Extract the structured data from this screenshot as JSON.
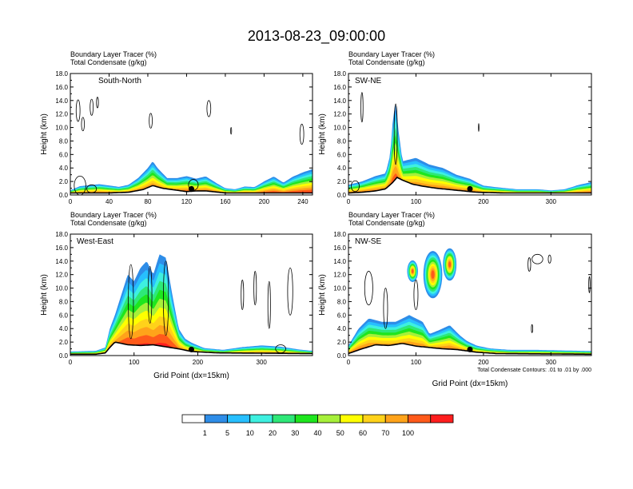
{
  "title": "2013-08-23_09:00:00",
  "field_label": "Boundary Layer Tracer   (%)",
  "contour_label": "Total Condensate   (g/kg)",
  "colors": {
    "contour": "#000000",
    "levels": [
      "#ffffff",
      "#2e8de8",
      "#27bfff",
      "#3ef0e0",
      "#2ee878",
      "#1ee61e",
      "#a6f03a",
      "#ffff00",
      "#ffd21a",
      "#ffa31a",
      "#ff5a1a",
      "#ff1e1e"
    ]
  },
  "chart_data": [
    {
      "type": "heatmap",
      "panel_label": "South-North",
      "ylabel": "Height (km)",
      "xlabel": "",
      "ylim": [
        0,
        18
      ],
      "yticks": [
        "0.0",
        "2.0",
        "4.0",
        "6.0",
        "8.0",
        "10.0",
        "12.0",
        "14.0",
        "16.0",
        "18.0"
      ],
      "xlim": [
        0,
        250
      ],
      "xticks": [
        0,
        40,
        80,
        120,
        160,
        200,
        240
      ],
      "marker_x": 125,
      "terrain": [
        [
          0,
          0.3
        ],
        [
          20,
          0.3
        ],
        [
          40,
          0.3
        ],
        [
          60,
          0.4
        ],
        [
          75,
          0.8
        ],
        [
          85,
          1.4
        ],
        [
          95,
          1.0
        ],
        [
          110,
          0.7
        ],
        [
          120,
          0.5
        ],
        [
          130,
          0.6
        ],
        [
          140,
          0.6
        ],
        [
          160,
          0.3
        ],
        [
          250,
          0.3
        ]
      ],
      "tracer": [
        [
          0,
          0.7,
          1.0
        ],
        [
          10,
          1.3,
          1.0
        ],
        [
          30,
          1.6,
          1.0
        ],
        [
          50,
          1.2,
          1.0
        ],
        [
          60,
          1.5,
          1.0
        ],
        [
          70,
          2.5,
          1.0
        ],
        [
          80,
          4.0,
          1.0
        ],
        [
          85,
          5.0,
          1.0
        ],
        [
          90,
          4.0,
          1.0
        ],
        [
          100,
          2.5,
          1.0
        ],
        [
          110,
          2.5,
          1.0
        ],
        [
          120,
          2.8,
          1.0
        ],
        [
          130,
          2.4,
          1.0
        ],
        [
          140,
          3.0,
          0.8
        ],
        [
          150,
          2.0,
          0.8
        ],
        [
          160,
          1.2,
          0.6
        ],
        [
          170,
          1.0,
          0.6
        ],
        [
          180,
          1.5,
          0.6
        ],
        [
          190,
          1.4,
          0.6
        ],
        [
          200,
          2.2,
          0.8
        ],
        [
          210,
          3.0,
          0.8
        ],
        [
          220,
          2.0,
          0.8
        ],
        [
          230,
          3.0,
          0.8
        ],
        [
          240,
          3.5,
          0.9
        ],
        [
          250,
          4.0,
          0.9
        ]
      ],
      "condensate_contours": [
        [
          8,
          12.5,
          2,
          1.6
        ],
        [
          13,
          10.5,
          1.5,
          1
        ],
        [
          22,
          13,
          1.6,
          1.2
        ],
        [
          28,
          13.7,
          1,
          0.8
        ],
        [
          83,
          11,
          1.6,
          1.1
        ],
        [
          143,
          12.8,
          2,
          1.2
        ],
        [
          166,
          9.5,
          0.5,
          0.5
        ],
        [
          239,
          9,
          2,
          1.5
        ],
        [
          10,
          1.4,
          6,
          1.4
        ],
        [
          22,
          0.9,
          5,
          0.6
        ],
        [
          127,
          1.5,
          5,
          0.8
        ]
      ],
      "colorbar": {
        "labels": [
          "1",
          "5",
          "10",
          "20",
          "30",
          "40",
          "50",
          "60",
          "70",
          "100"
        ]
      }
    },
    {
      "type": "heatmap",
      "panel_label": "SW-NE",
      "ylabel": "Height (km)",
      "xlabel": "",
      "ylim": [
        0,
        18
      ],
      "yticks": [
        "0.0",
        "2.0",
        "4.0",
        "6.0",
        "8.0",
        "10.0",
        "12.0",
        "14.0",
        "16.0",
        "18.0"
      ],
      "xlim": [
        0,
        360
      ],
      "xticks": [
        0,
        100,
        200,
        300
      ],
      "marker_x": 180,
      "terrain": [
        [
          0,
          0.3
        ],
        [
          20,
          0.4
        ],
        [
          40,
          0.6
        ],
        [
          55,
          0.9
        ],
        [
          65,
          1.8
        ],
        [
          72,
          2.6
        ],
        [
          80,
          2.2
        ],
        [
          95,
          1.6
        ],
        [
          110,
          1.3
        ],
        [
          130,
          1.0
        ],
        [
          150,
          0.8
        ],
        [
          170,
          0.6
        ],
        [
          190,
          0.4
        ],
        [
          230,
          0.3
        ],
        [
          360,
          0.3
        ]
      ],
      "tracer": [
        [
          0,
          1.5,
          1.0
        ],
        [
          20,
          2.0,
          1.0
        ],
        [
          40,
          2.8,
          1.0
        ],
        [
          55,
          3.2,
          1.0
        ],
        [
          62,
          6.0,
          1.0
        ],
        [
          66,
          12.5,
          0.8
        ],
        [
          70,
          15.5,
          0.7
        ],
        [
          74,
          10.0,
          0.9
        ],
        [
          80,
          5.0,
          1.0
        ],
        [
          100,
          5.5,
          1.0
        ],
        [
          120,
          4.5,
          1.0
        ],
        [
          140,
          4.0,
          1.0
        ],
        [
          160,
          3.0,
          1.0
        ],
        [
          180,
          2.5,
          0.9
        ],
        [
          200,
          1.5,
          0.8
        ],
        [
          220,
          1.3,
          0.7
        ],
        [
          250,
          1.0,
          0.6
        ],
        [
          280,
          1.0,
          0.6
        ],
        [
          300,
          0.8,
          0.6
        ],
        [
          320,
          1.0,
          0.6
        ],
        [
          340,
          1.6,
          0.8
        ],
        [
          360,
          2.0,
          0.9
        ]
      ],
      "condensate_contours": [
        [
          20,
          13,
          1.6,
          2.2
        ],
        [
          70,
          9,
          2.3,
          4.5
        ],
        [
          193,
          10,
          0.4,
          0.6
        ],
        [
          10,
          1.3,
          6,
          0.8
        ]
      ],
      "colorbar": {
        "labels": []
      }
    },
    {
      "type": "heatmap",
      "panel_label": "West-East",
      "ylabel": "Height (km)",
      "xlabel": "Grid Point (dx=15km)",
      "ylim": [
        0,
        18
      ],
      "yticks": [
        "0.0",
        "2.0",
        "4.0",
        "6.0",
        "8.0",
        "10.0",
        "12.0",
        "14.0",
        "16.0",
        "18.0"
      ],
      "xlim": [
        0,
        380
      ],
      "xticks": [
        0,
        100,
        200,
        300
      ],
      "marker_x": 190,
      "terrain": [
        [
          0,
          0.2
        ],
        [
          40,
          0.2
        ],
        [
          55,
          0.4
        ],
        [
          62,
          1.2
        ],
        [
          70,
          2.0
        ],
        [
          90,
          1.6
        ],
        [
          110,
          1.5
        ],
        [
          130,
          1.6
        ],
        [
          150,
          1.3
        ],
        [
          170,
          1.0
        ],
        [
          190,
          0.6
        ],
        [
          230,
          0.4
        ],
        [
          380,
          0.3
        ]
      ],
      "tracer": [
        [
          0,
          0.6,
          1.0
        ],
        [
          40,
          0.7,
          1.0
        ],
        [
          55,
          1.2,
          1.0
        ],
        [
          62,
          4.0,
          1.0
        ],
        [
          70,
          6.0,
          1.0
        ],
        [
          80,
          9.0,
          1.0
        ],
        [
          90,
          12.0,
          1.0
        ],
        [
          100,
          11.0,
          1.0
        ],
        [
          110,
          13.0,
          1.0
        ],
        [
          120,
          14.0,
          1.0
        ],
        [
          130,
          12.0,
          1.0
        ],
        [
          140,
          15.0,
          1.0
        ],
        [
          150,
          14.5,
          1.0
        ],
        [
          160,
          9.0,
          1.0
        ],
        [
          170,
          4.0,
          1.0
        ],
        [
          180,
          2.5,
          1.0
        ],
        [
          190,
          2.0,
          0.9
        ],
        [
          210,
          1.2,
          0.8
        ],
        [
          240,
          1.0,
          0.6
        ],
        [
          270,
          1.5,
          0.6
        ],
        [
          300,
          1.8,
          0.6
        ],
        [
          330,
          1.5,
          0.7
        ],
        [
          360,
          1.0,
          0.7
        ],
        [
          380,
          0.8,
          0.7
        ]
      ],
      "condensate_contours": [
        [
          95,
          8,
          4,
          5.5
        ],
        [
          125,
          9,
          3,
          4.2
        ],
        [
          150,
          8.5,
          4,
          5.5
        ],
        [
          270,
          9,
          2,
          2.2
        ],
        [
          290,
          10,
          2,
          2.5
        ],
        [
          312,
          7.5,
          2,
          3.5
        ],
        [
          345,
          9.5,
          4,
          3.5
        ],
        [
          330,
          1,
          8,
          0.6
        ]
      ],
      "colorbar": {
        "labels": []
      }
    },
    {
      "type": "heatmap",
      "panel_label": "NW-SE",
      "ylabel": "Height (km)",
      "xlabel": "Grid Point (dx=15km)",
      "ylim": [
        0,
        18
      ],
      "yticks": [
        "0.0",
        "2.0",
        "4.0",
        "6.0",
        "8.0",
        "10.0",
        "12.0",
        "14.0",
        "16.0",
        "18.0"
      ],
      "xlim": [
        0,
        360
      ],
      "xticks": [
        0,
        100,
        200,
        300
      ],
      "marker_x": 180,
      "annotation": "Total Condensate Contours: .01 to .01 by .000",
      "terrain": [
        [
          0,
          0.3
        ],
        [
          20,
          1.0
        ],
        [
          40,
          1.6
        ],
        [
          60,
          1.5
        ],
        [
          80,
          1.8
        ],
        [
          100,
          1.4
        ],
        [
          120,
          1.2
        ],
        [
          140,
          1.0
        ],
        [
          160,
          0.9
        ],
        [
          175,
          0.7
        ],
        [
          190,
          0.5
        ],
        [
          220,
          0.3
        ],
        [
          360,
          0.2
        ]
      ],
      "tracer": [
        [
          0,
          1.5,
          1.0
        ],
        [
          15,
          4.0,
          1.0
        ],
        [
          30,
          5.5,
          1.0
        ],
        [
          50,
          5.0,
          1.0
        ],
        [
          70,
          5.0,
          1.0
        ],
        [
          90,
          6.0,
          1.0
        ],
        [
          110,
          5.0,
          1.0
        ],
        [
          120,
          3.2,
          1.0
        ],
        [
          135,
          3.8,
          1.0
        ],
        [
          150,
          4.5,
          1.0
        ],
        [
          165,
          3.0,
          1.0
        ],
        [
          175,
          2.2,
          1.0
        ],
        [
          190,
          1.6,
          0.8
        ],
        [
          210,
          1.2,
          0.7
        ],
        [
          240,
          1.0,
          0.6
        ],
        [
          280,
          1.0,
          0.6
        ],
        [
          320,
          0.9,
          0.6
        ],
        [
          360,
          0.8,
          0.6
        ]
      ],
      "upper_cloud": [
        [
          95,
          12.5,
          8,
          1.6
        ],
        [
          125,
          12,
          14,
          3.5
        ],
        [
          150,
          13.5,
          10,
          2.4
        ]
      ],
      "condensate_contours": [
        [
          30,
          10,
          6,
          2.5
        ],
        [
          55,
          7,
          3,
          3
        ],
        [
          280,
          14.3,
          8,
          0.7
        ],
        [
          298,
          14.3,
          2,
          0.6
        ],
        [
          268,
          13.5,
          2,
          1
        ],
        [
          272,
          4,
          1,
          0.6
        ],
        [
          357,
          10.5,
          1,
          1.2
        ],
        [
          100,
          9,
          3,
          2.2
        ]
      ],
      "colorbar": {
        "labels": []
      }
    }
  ]
}
